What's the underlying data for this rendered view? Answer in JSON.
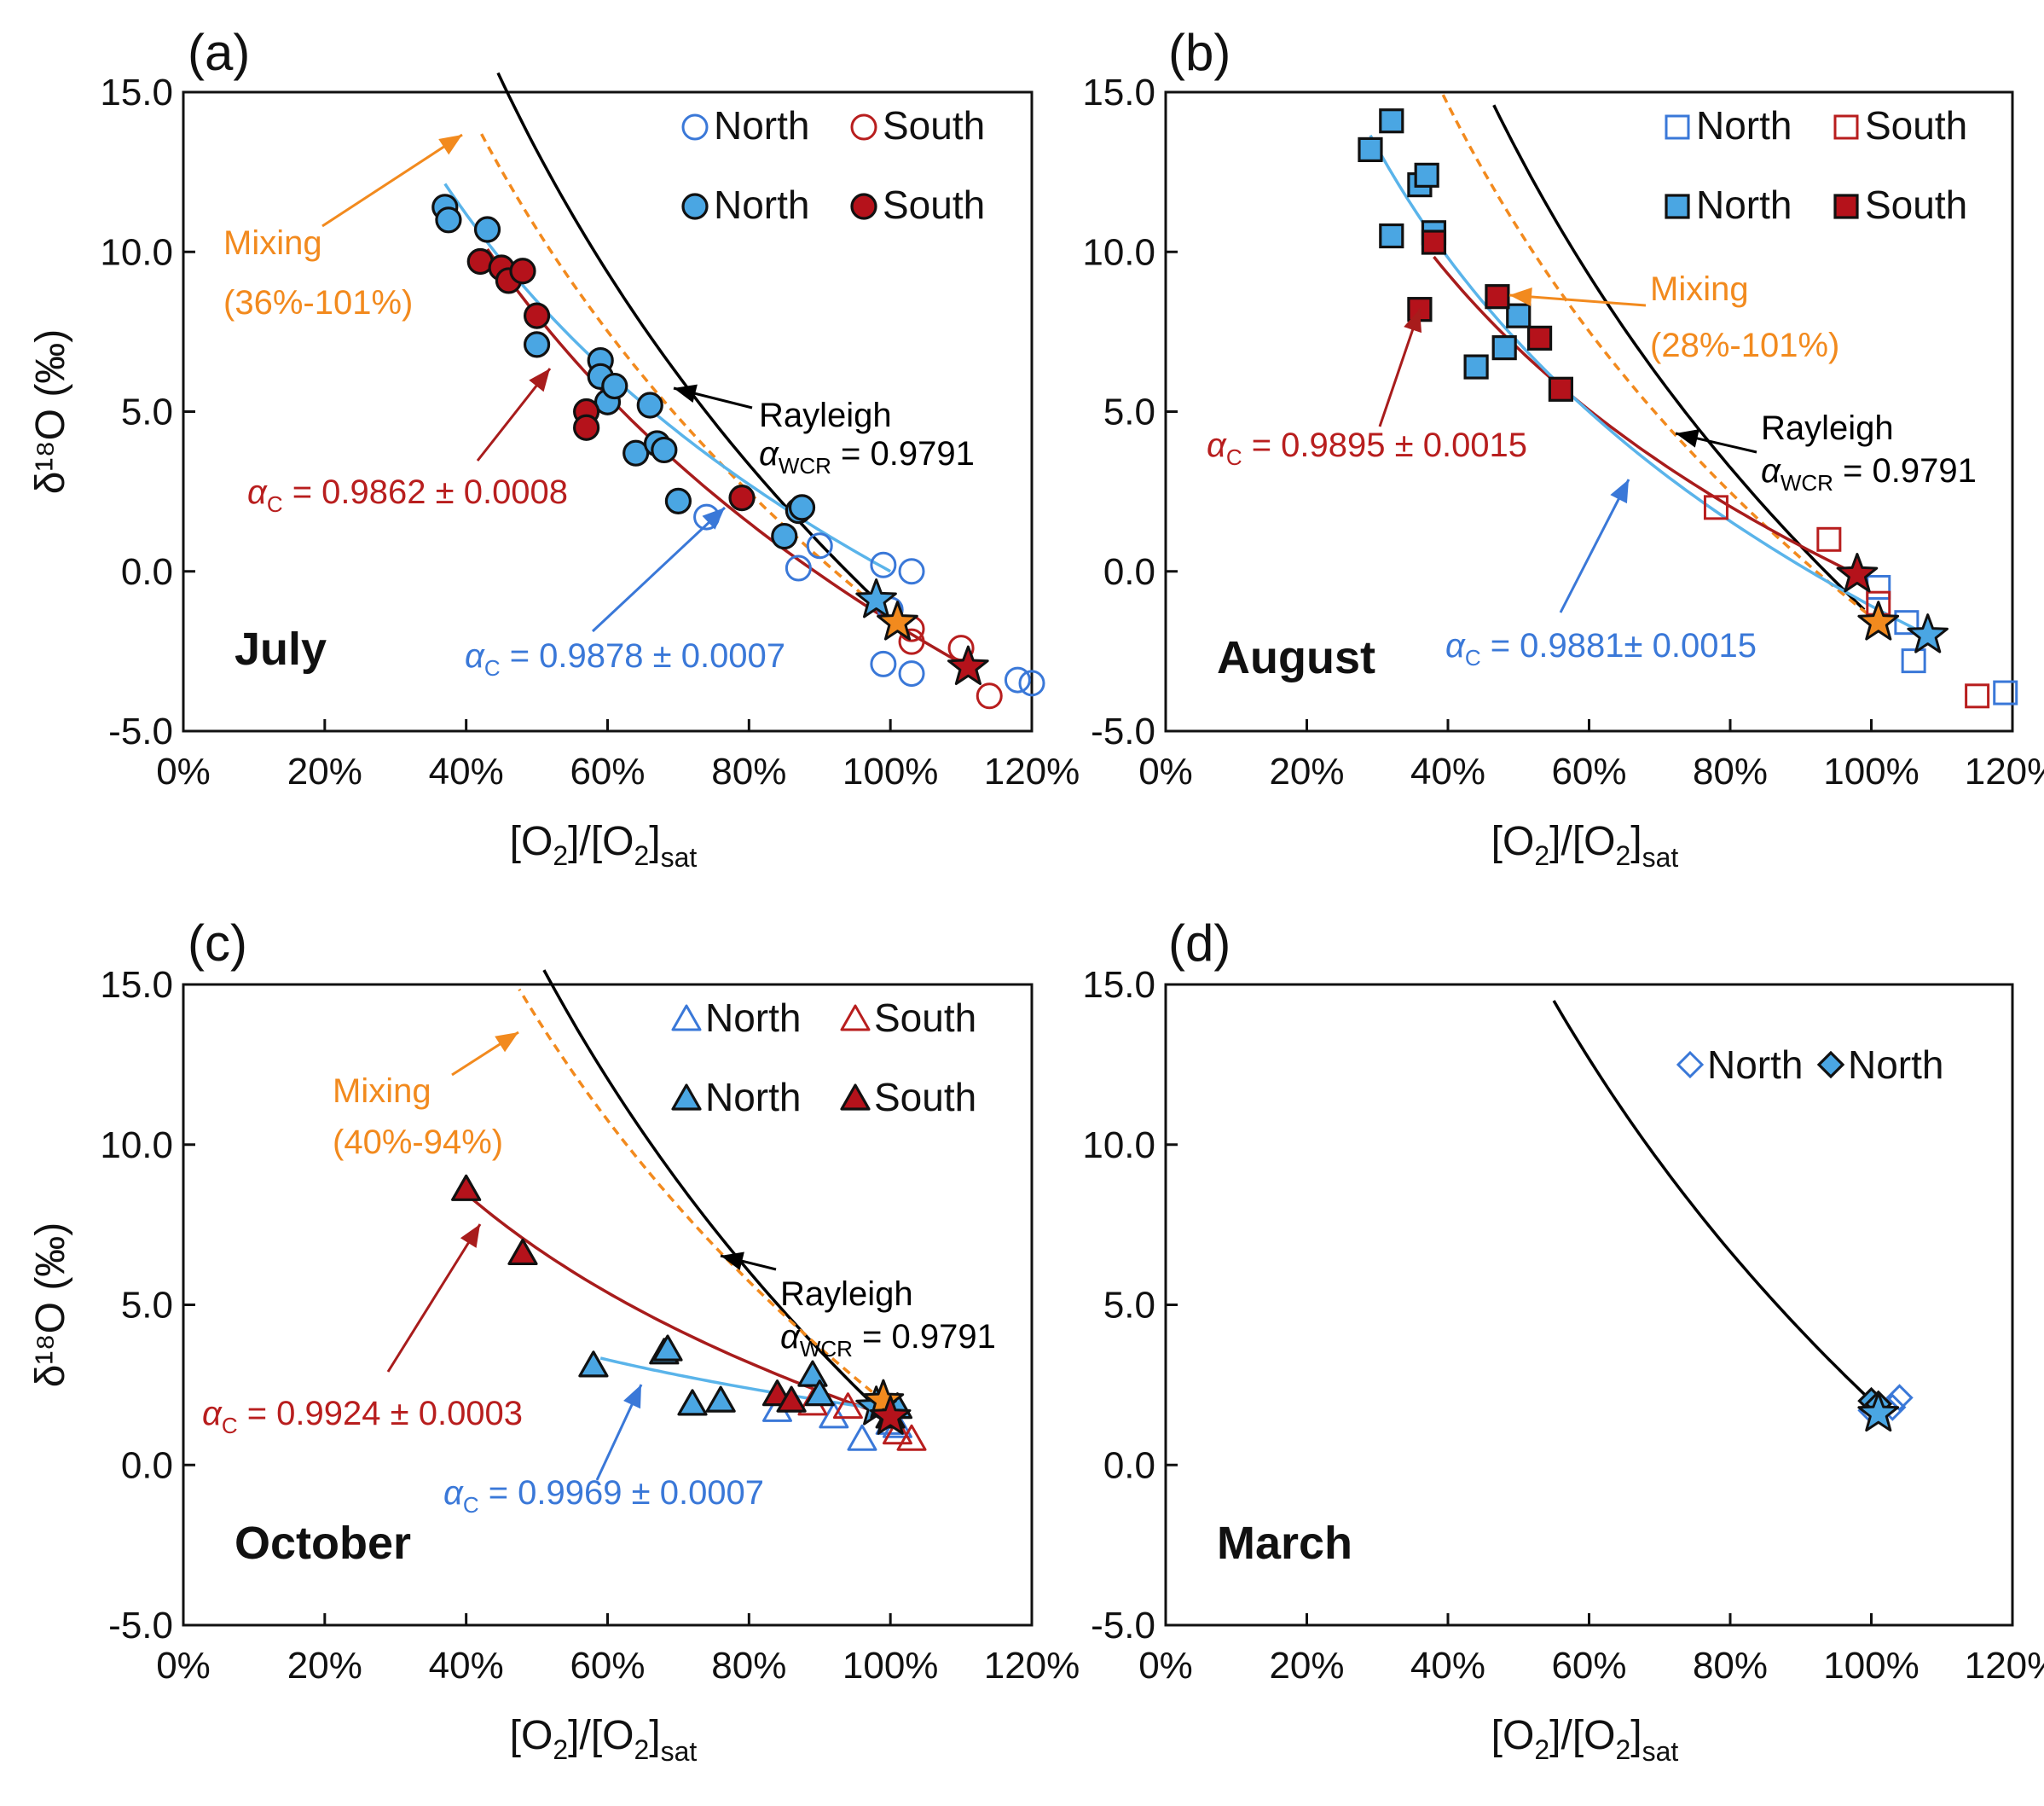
{
  "colors": {
    "blue": "#3a78d8",
    "blue_fill": "#4aa6e3",
    "blue_line": "#5ab4ea",
    "red": "#b81e1e",
    "red_fill": "#b5121b",
    "red_line": "#a81c1c",
    "orange": "#f28a1e",
    "black": "#000000"
  },
  "chart_data": [
    {
      "type": "scatter",
      "panel_label": "(a)",
      "month": "July",
      "xlabel_main": "[O",
      "xlabel_sub": "2",
      "xlabel_mid": "]/[O",
      "xlabel_sub2": "2",
      "xlabel_end": "]",
      "xlabel_sat": "sat",
      "ylabel": "δ¹⁸O (‰)",
      "xlim": [
        0,
        120
      ],
      "ylim": [
        -5,
        15
      ],
      "xticks": [
        "0%",
        "20%",
        "40%",
        "60%",
        "80%",
        "100%",
        "120%"
      ],
      "yticks": [
        "-5.0",
        "0.0",
        "5.0",
        "10.0",
        "15.0"
      ],
      "marker": "circle",
      "legend": {
        "open_north": "North",
        "open_south": "South",
        "filled_north": "North",
        "filled_south": "South"
      },
      "series": [
        {
          "name": "North (open)",
          "filled": false,
          "color": "blue",
          "points": [
            [
              74,
              1.7
            ],
            [
              87,
              0.1
            ],
            [
              90,
              0.8
            ],
            [
              99,
              0.2
            ],
            [
              100,
              -1.2
            ],
            [
              103,
              0
            ],
            [
              99,
              -2.9
            ],
            [
              103,
              -3.2
            ],
            [
              118,
              -3.4
            ],
            [
              120,
              -3.5
            ]
          ]
        },
        {
          "name": "South (open)",
          "filled": false,
          "color": "red",
          "points": [
            [
              103,
              -1.8
            ],
            [
              103,
              -2.2
            ],
            [
              110,
              -2.4
            ],
            [
              114,
              -3.9
            ]
          ]
        },
        {
          "name": "North (filled)",
          "filled": true,
          "color": "blue",
          "points": [
            [
              37,
              11.4
            ],
            [
              37.5,
              11.0
            ],
            [
              43,
              10.7
            ],
            [
              50,
              7.1
            ],
            [
              59,
              6.6
            ],
            [
              59,
              6.1
            ],
            [
              60,
              5.3
            ],
            [
              61,
              5.8
            ],
            [
              66,
              5.2
            ],
            [
              64,
              3.7
            ],
            [
              67,
              4.0
            ],
            [
              68,
              3.8
            ],
            [
              70,
              2.2
            ],
            [
              85,
              1.1
            ],
            [
              87,
              1.9
            ],
            [
              87.5,
              2.0
            ]
          ]
        },
        {
          "name": "South (filled)",
          "filled": true,
          "color": "red",
          "points": [
            [
              42,
              9.7
            ],
            [
              45,
              9.5
            ],
            [
              46,
              9.1
            ],
            [
              48,
              9.4
            ],
            [
              50,
              8.0
            ],
            [
              57,
              5.0
            ],
            [
              57,
              4.5
            ],
            [
              79,
              2.3
            ]
          ]
        }
      ],
      "stars": [
        {
          "x": 98,
          "y": -0.9,
          "color": "blue"
        },
        {
          "x": 101,
          "y": -1.6,
          "color": "orange"
        },
        {
          "x": 111,
          "y": -3.0,
          "color": "red"
        }
      ],
      "curves": [
        {
          "name": "Rayleigh",
          "style": "solid",
          "color": "black",
          "start": [
            98,
            -0.9
          ],
          "alpha": 0.9791,
          "x_from": 44.5,
          "x_to": 98
        },
        {
          "name": "Mixing",
          "style": "dashed",
          "color": "orange",
          "start": [
            101,
            -1.6
          ],
          "alpha": 0.9825,
          "x_from": 42,
          "x_to": 101
        },
        {
          "name": "alpha_c red",
          "style": "solid",
          "color": "red",
          "start": [
            111,
            -3.0
          ],
          "alpha": 0.9862,
          "x_from": 43,
          "x_to": 111
        },
        {
          "name": "alpha_c blue",
          "style": "solid",
          "color": "blue",
          "start": [
            100,
            0.0
          ],
          "alpha": 0.9878,
          "x_from": 37,
          "x_to": 100
        }
      ],
      "annotations": {
        "mixing_label": "Mixing",
        "mixing_range": "(36%-101%)",
        "rayleigh_label": "Rayleigh",
        "rayleigh_alpha_sub": "WCR",
        "rayleigh_alpha_value": "= 0.9791",
        "alpha_symbol": "α",
        "alpha_c_sub": "C",
        "alpha_red_value": "= 0.9862 ± 0.0008",
        "alpha_blue_value": "= 0.9878 ± 0.0007"
      }
    },
    {
      "type": "scatter",
      "panel_label": "(b)",
      "month": "August",
      "xlim": [
        0,
        120
      ],
      "ylim": [
        -5,
        15
      ],
      "xticks": [
        "0%",
        "20%",
        "40%",
        "60%",
        "80%",
        "100%",
        "120%"
      ],
      "yticks": [
        "-5.0",
        "0.0",
        "5.0",
        "10.0",
        "15.0"
      ],
      "marker": "square",
      "legend": {
        "open_north": "North",
        "open_south": "South",
        "filled_north": "North",
        "filled_south": "South"
      },
      "series": [
        {
          "name": "North (open)",
          "filled": false,
          "color": "blue",
          "points": [
            [
              101,
              -0.5
            ],
            [
              105,
              -1.6
            ],
            [
              106,
              -2.8
            ],
            [
              119,
              -3.8
            ]
          ]
        },
        {
          "name": "South (open)",
          "filled": false,
          "color": "red",
          "points": [
            [
              78,
              2.0
            ],
            [
              94,
              1.0
            ],
            [
              101,
              -1.0
            ],
            [
              115,
              -3.9
            ]
          ]
        },
        {
          "name": "North (filled)",
          "filled": true,
          "color": "blue",
          "points": [
            [
              29,
              13.2
            ],
            [
              32,
              14.1
            ],
            [
              32,
              10.5
            ],
            [
              36,
              12.1
            ],
            [
              37,
              12.4
            ],
            [
              38,
              10.6
            ],
            [
              44,
              6.4
            ],
            [
              50,
              8.0
            ],
            [
              48,
              7.0
            ]
          ]
        },
        {
          "name": "South (filled)",
          "filled": true,
          "color": "red",
          "points": [
            [
              36,
              8.2
            ],
            [
              38,
              10.3
            ],
            [
              47,
              8.6
            ],
            [
              53,
              7.3
            ],
            [
              56,
              5.7
            ]
          ]
        }
      ],
      "stars": [
        {
          "x": 98,
          "y": -0.1,
          "color": "red"
        },
        {
          "x": 101,
          "y": -1.6,
          "color": "orange"
        },
        {
          "x": 108,
          "y": -2.0,
          "color": "blue"
        }
      ],
      "curves": [
        {
          "name": "Rayleigh",
          "style": "solid",
          "color": "black",
          "start": [
            99,
            -1.2
          ],
          "alpha": 0.9791,
          "x_from": 46.5,
          "x_to": 99
        },
        {
          "name": "Mixing",
          "style": "dashed",
          "color": "orange",
          "start": [
            101,
            -1.6
          ],
          "alpha": 0.9825,
          "x_from": 39,
          "x_to": 101
        },
        {
          "name": "alpha_c red",
          "style": "solid",
          "color": "red",
          "start": [
            98,
            -0.1
          ],
          "alpha": 0.9895,
          "x_from": 38,
          "x_to": 98
        },
        {
          "name": "alpha_c blue",
          "style": "solid",
          "color": "blue",
          "start": [
            108,
            -2.0
          ],
          "alpha": 0.9881,
          "x_from": 29,
          "x_to": 108
        }
      ],
      "annotations": {
        "mixing_label": "Mixing",
        "mixing_range": "(28%-101%)",
        "rayleigh_label": "Rayleigh",
        "rayleigh_alpha_sub": "WCR",
        "rayleigh_alpha_value": "= 0.9791",
        "alpha_symbol": "α",
        "alpha_c_sub": "C",
        "alpha_red_value": "= 0.9895 ± 0.0015",
        "alpha_blue_value": "= 0.9881± 0.0015"
      }
    },
    {
      "type": "scatter",
      "panel_label": "(c)",
      "month": "October",
      "xlim": [
        0,
        120
      ],
      "ylim": [
        -5,
        15
      ],
      "xticks": [
        "0%",
        "20%",
        "40%",
        "60%",
        "80%",
        "100%",
        "120%"
      ],
      "yticks": [
        "-5.0",
        "0.0",
        "5.0",
        "10.0",
        "15.0"
      ],
      "marker": "triangle",
      "legend": {
        "open_north": "North",
        "open_south": "South",
        "filled_north": "North",
        "filled_south": "South"
      },
      "series": [
        {
          "name": "North (open)",
          "filled": false,
          "color": "blue",
          "points": [
            [
              84,
              1.7
            ],
            [
              92,
              1.5
            ],
            [
              96,
              0.8
            ],
            [
              100,
              1.3
            ],
            [
              101,
              1.2
            ]
          ]
        },
        {
          "name": "South (open)",
          "filled": false,
          "color": "red",
          "points": [
            [
              89,
              1.9
            ],
            [
              94,
              1.8
            ],
            [
              101,
              1.0
            ],
            [
              103,
              0.8
            ]
          ]
        },
        {
          "name": "North (filled)",
          "filled": true,
          "color": "blue",
          "points": [
            [
              58,
              3.1
            ],
            [
              68,
              3.5
            ],
            [
              68.5,
              3.6
            ],
            [
              72,
              1.9
            ],
            [
              76,
              2.0
            ],
            [
              89,
              2.8
            ],
            [
              90,
              2.2
            ],
            [
              101,
              1.8
            ]
          ]
        },
        {
          "name": "South (filled)",
          "filled": true,
          "color": "red",
          "points": [
            [
              40,
              8.6
            ],
            [
              48,
              6.6
            ],
            [
              84,
              2.2
            ],
            [
              86,
              2.0
            ],
            [
              100,
              1.5
            ]
          ]
        }
      ],
      "stars": [
        {
          "x": 98,
          "y": 1.8,
          "color": "blue"
        },
        {
          "x": 99,
          "y": 2.0,
          "color": "orange"
        },
        {
          "x": 100,
          "y": 1.5,
          "color": "red"
        }
      ],
      "curves": [
        {
          "name": "Rayleigh",
          "style": "solid",
          "color": "black",
          "start": [
            98,
            1.8
          ],
          "alpha": 0.9791,
          "x_from": 51,
          "x_to": 98
        },
        {
          "name": "Mixing",
          "style": "dashed",
          "color": "orange",
          "start": [
            99,
            2.0
          ],
          "alpha": 0.9825,
          "x_from": 47.5,
          "x_to": 99
        },
        {
          "name": "alpha_c red",
          "style": "solid",
          "color": "red",
          "start": [
            100,
            1.5
          ],
          "alpha": 0.9924,
          "x_from": 41,
          "x_to": 100
        },
        {
          "name": "alpha_c blue",
          "style": "solid",
          "color": "blue",
          "start": [
            100,
            1.7
          ],
          "alpha": 0.9969,
          "x_from": 59,
          "x_to": 100
        }
      ],
      "annotations": {
        "mixing_label": "Mixing",
        "mixing_range": "(40%-94%)",
        "rayleigh_label": "Rayleigh",
        "rayleigh_alpha_sub": "WCR",
        "rayleigh_alpha_value": "= 0.9791",
        "alpha_symbol": "α",
        "alpha_c_sub": "C",
        "alpha_red_value": "= 0.9924 ± 0.0003",
        "alpha_blue_value": "= 0.9969 ± 0.0007"
      }
    },
    {
      "type": "scatter",
      "panel_label": "(d)",
      "month": "March",
      "xlim": [
        0,
        120
      ],
      "ylim": [
        -5,
        15
      ],
      "xticks": [
        "0%",
        "20%",
        "40%",
        "60%",
        "80%",
        "100%",
        "120%"
      ],
      "yticks": [
        "-5.0",
        "0.0",
        "5.0",
        "10.0",
        "15.0"
      ],
      "marker": "diamond",
      "legend": {
        "open_north": "North",
        "filled_north": "North"
      },
      "series": [
        {
          "name": "North (open)",
          "filled": false,
          "color": "blue",
          "points": [
            [
              100,
              1.7
            ],
            [
              103,
              1.8
            ],
            [
              104,
              2.1
            ]
          ]
        },
        {
          "name": "North (filled)",
          "filled": true,
          "color": "blue",
          "points": [
            [
              100,
              2.0
            ],
            [
              101,
              1.9
            ]
          ]
        }
      ],
      "stars": [
        {
          "x": 101,
          "y": 1.6,
          "color": "blue"
        }
      ],
      "curves": [
        {
          "name": "Rayleigh",
          "style": "solid",
          "color": "black",
          "start": [
            100,
            2.0
          ],
          "alpha": 0.9791,
          "x_from": 55,
          "x_to": 100
        }
      ]
    }
  ]
}
